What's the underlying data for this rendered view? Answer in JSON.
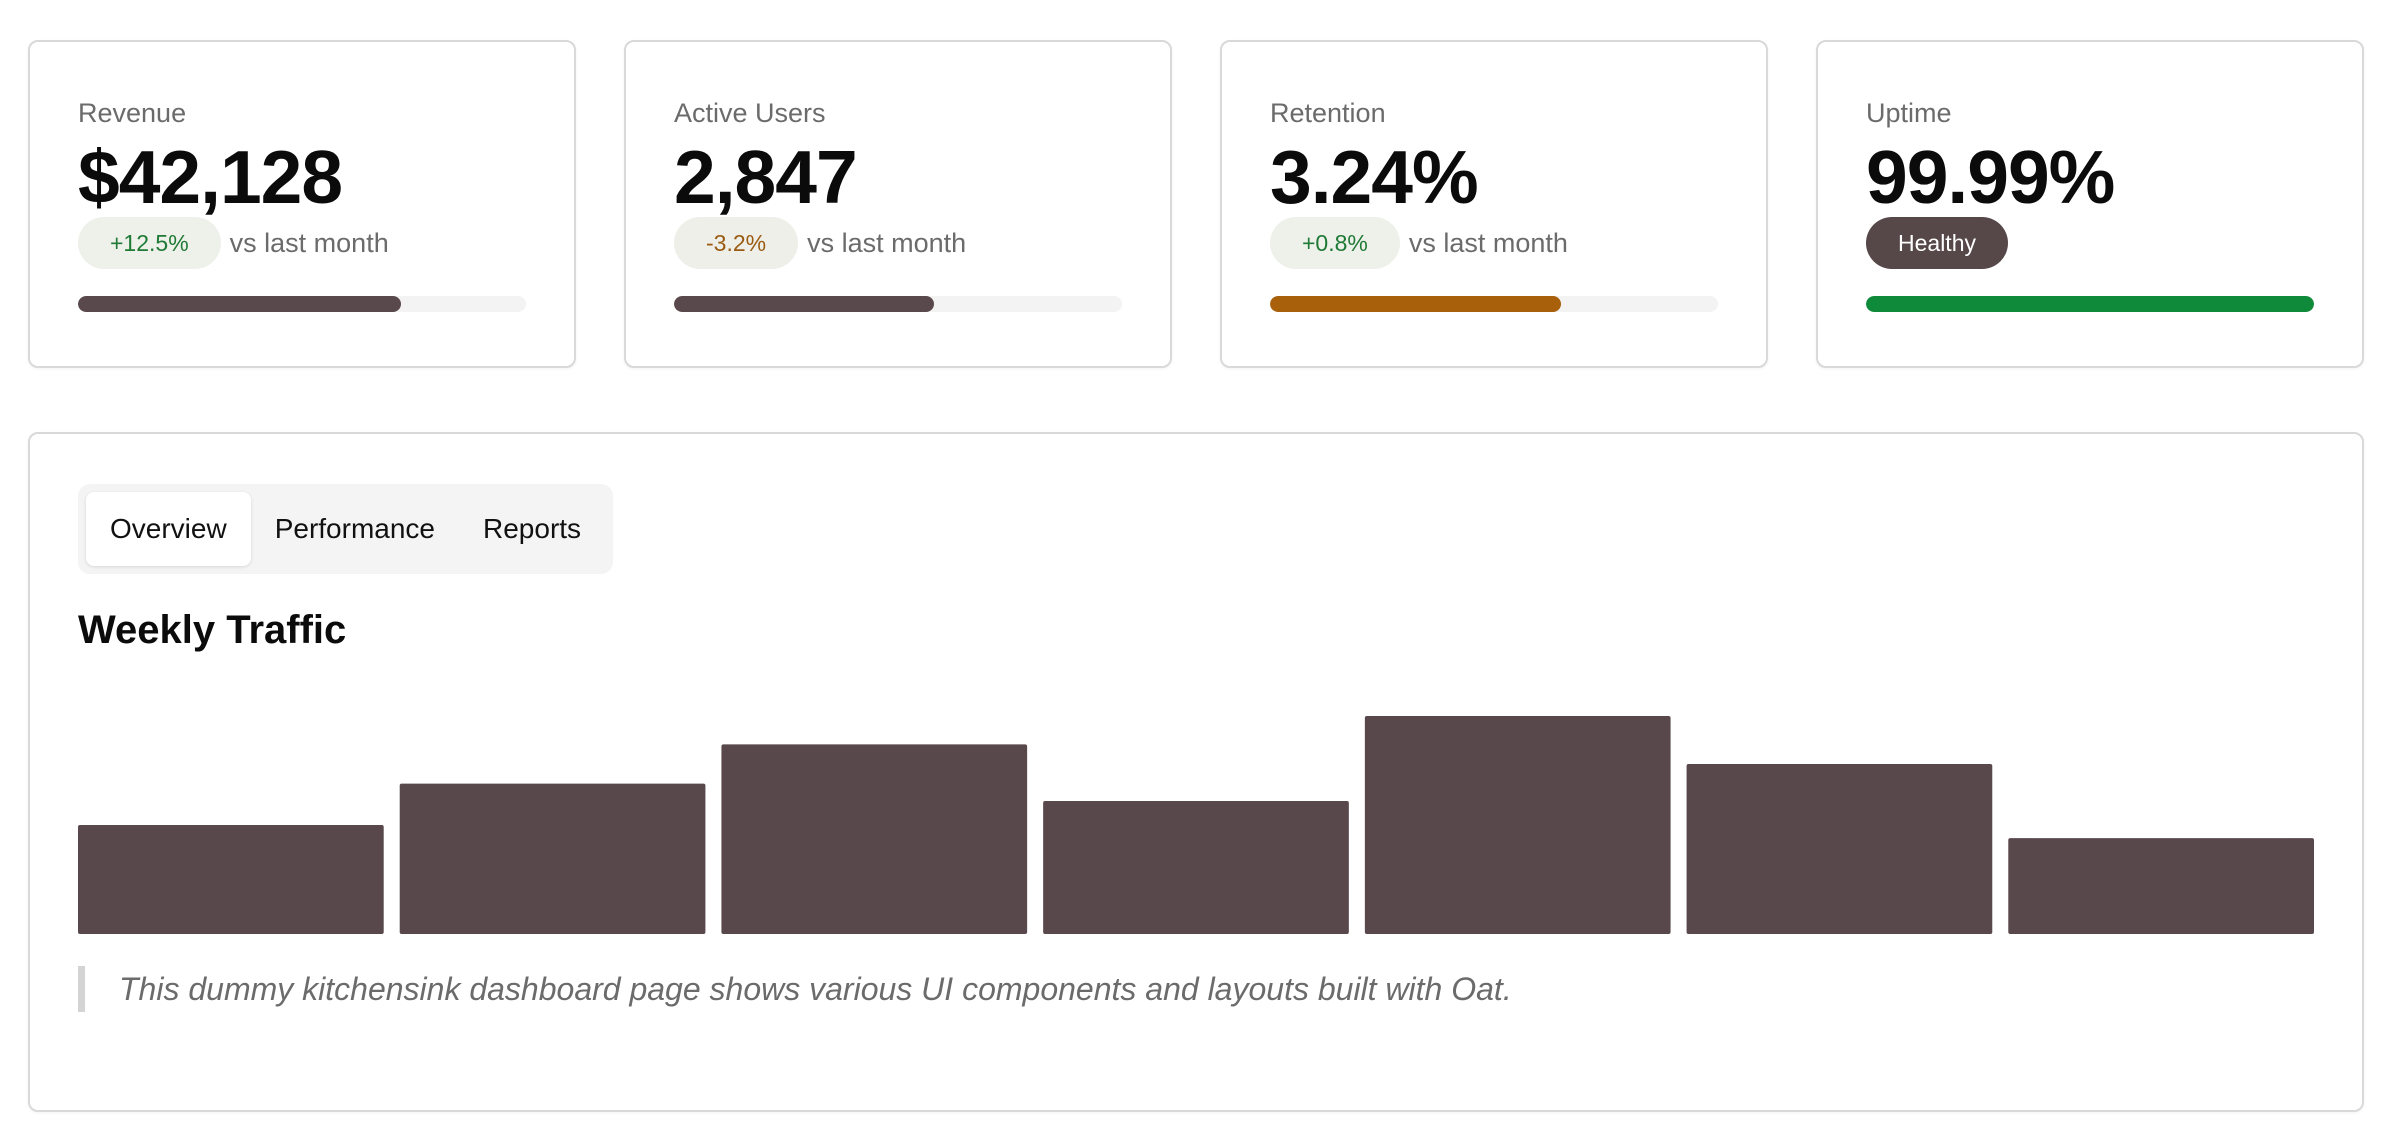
{
  "stats": [
    {
      "label": "Revenue",
      "value": "$42,128",
      "change": "+12.5%",
      "change_type": "positive",
      "compare_text": "vs last month",
      "progress": 0.72,
      "progress_color": "#5a494c"
    },
    {
      "label": "Active Users",
      "value": "2,847",
      "change": "-3.2%",
      "change_type": "negative",
      "compare_text": "vs last month",
      "progress": 0.58,
      "progress_color": "#5a494c"
    },
    {
      "label": "Retention",
      "value": "3.24%",
      "change": "+0.8%",
      "change_type": "positive",
      "compare_text": "vs last month",
      "progress": 0.65,
      "progress_color": "#a8600a"
    },
    {
      "label": "Uptime",
      "value": "99.99%",
      "status_badge": "Healthy",
      "progress": 1.0,
      "progress_color": "#0f8a3a"
    }
  ],
  "tabs": [
    {
      "label": "Overview",
      "active": true
    },
    {
      "label": "Performance",
      "active": false
    },
    {
      "label": "Reports",
      "active": false
    }
  ],
  "section_title": "Weekly Traffic",
  "chart_data": {
    "type": "bar",
    "categories": [
      "",
      "",
      "",
      "",
      "",
      "",
      ""
    ],
    "values": [
      50,
      69,
      87,
      61,
      100,
      78,
      44
    ],
    "ylim": [
      0,
      100
    ],
    "grid": false,
    "bar_color": "#58484b",
    "title": ""
  },
  "note": "This dummy kitchensink dashboard page shows various UI components and layouts built with Oat."
}
